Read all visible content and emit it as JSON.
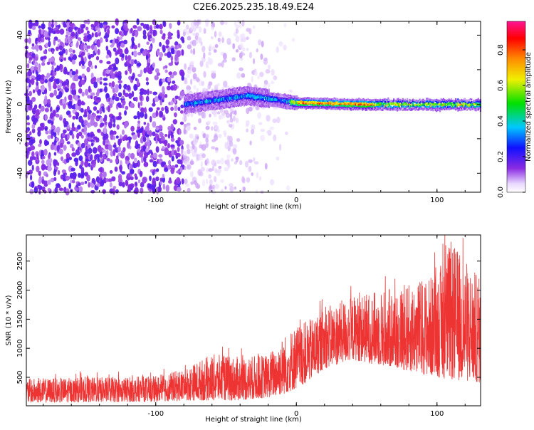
{
  "figure": {
    "title": "C2E6.2025.235.18.49.E24"
  },
  "chart_data": [
    {
      "type": "heatmap",
      "title": "C2E6.2025.235.18.49.E24",
      "xlabel": "Height of straight line (km)",
      "ylabel": "Frequency (Hz)",
      "xlim": [
        -192,
        131
      ],
      "ylim": [
        -51,
        48
      ],
      "xticks": [
        -100,
        0,
        100
      ],
      "yticks": [
        -40,
        -20,
        0,
        20,
        40
      ],
      "xtick_labels": [
        "-100",
        "0",
        "100"
      ],
      "ytick_labels": [
        "-40",
        "-20",
        "0",
        "20",
        "40"
      ],
      "colorbar": {
        "label": "Normalized spectral amplitude",
        "range": [
          0,
          0.96
        ],
        "ticks": [
          0.0,
          0.2,
          0.4,
          0.6,
          0.8
        ],
        "tick_labels": [
          "0.0",
          "0.2",
          "0.4",
          "0.6",
          "0.8"
        ]
      },
      "description_points": [
        {
          "x": -192,
          "ridge_freq": null,
          "noise": 0.35
        },
        {
          "x": -80,
          "ridge_freq": 0,
          "noise": 0.25
        },
        {
          "x": -35,
          "ridge_freq": 5,
          "noise": 0.1
        },
        {
          "x": 0,
          "ridge_freq": 1,
          "noise": 0.0
        },
        {
          "x": 50,
          "ridge_freq": 0,
          "noise": 0.0
        },
        {
          "x": 131,
          "ridge_freq": 0,
          "noise": 0.0
        }
      ]
    },
    {
      "type": "line",
      "xlabel": "Height of straight line (km)",
      "ylabel": "SNR (10 * v/v)",
      "xlim": [
        -192,
        131
      ],
      "ylim": [
        10,
        2950
      ],
      "xticks": [
        -100,
        0,
        100
      ],
      "yticks": [
        500,
        1000,
        1500,
        2000,
        2500
      ],
      "xtick_labels": [
        "-100",
        "0",
        "100"
      ],
      "ytick_labels": [
        "500",
        "1000",
        "1500",
        "2000",
        "2500"
      ],
      "series": [
        {
          "name": "SNR",
          "color": "#ee3333",
          "envelope_x": [
            -192,
            -150,
            -100,
            -80,
            -60,
            -40,
            -20,
            -10,
            0,
            10,
            20,
            40,
            60,
            80,
            100,
            110,
            131
          ],
          "envelope_low": [
            60,
            70,
            80,
            100,
            100,
            100,
            150,
            200,
            300,
            450,
            650,
            800,
            700,
            600,
            500,
            450,
            400
          ],
          "envelope_high": [
            480,
            500,
            520,
            650,
            900,
            850,
            900,
            1200,
            1400,
            1500,
            1700,
            1900,
            2000,
            2100,
            2300,
            2850,
            2200
          ]
        }
      ]
    }
  ]
}
